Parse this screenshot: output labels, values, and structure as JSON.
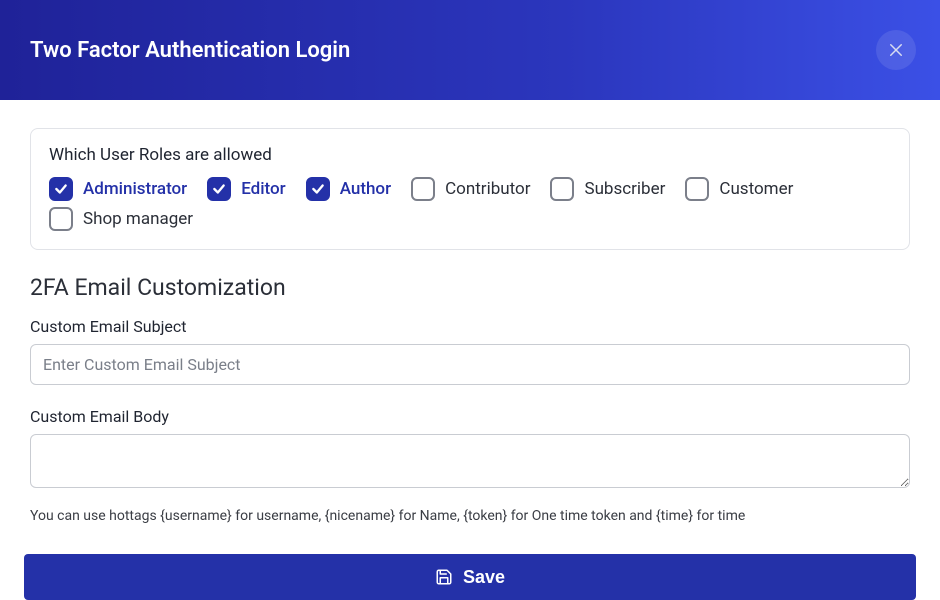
{
  "colors": {
    "header_gradient_from": "#1f2298",
    "header_gradient_to": "#3b50e6",
    "primary": "#2431a8",
    "border": "#e1e3e8",
    "input_border": "#c9ccd2",
    "text": "#2b2f38",
    "hint_text": "#3a3d44",
    "placeholder": "#7a7f89",
    "unchecked_border": "#7b7f8a",
    "white": "#ffffff"
  },
  "header": {
    "title": "Two Factor Authentication Login"
  },
  "roles_panel": {
    "title": "Which User Roles are allowed",
    "roles": [
      {
        "label": "Administrator",
        "checked": true
      },
      {
        "label": "Editor",
        "checked": true
      },
      {
        "label": "Author",
        "checked": true
      },
      {
        "label": "Contributor",
        "checked": false
      },
      {
        "label": "Subscriber",
        "checked": false
      },
      {
        "label": "Customer",
        "checked": false
      },
      {
        "label": "Shop manager",
        "checked": false
      }
    ]
  },
  "customization": {
    "heading": "2FA Email Customization",
    "subject_label": "Custom Email Subject",
    "subject_placeholder": "Enter Custom Email Subject",
    "subject_value": "",
    "body_label": "Custom Email Body",
    "body_value": "",
    "hint": "You can use hottags {username} for username, {nicename} for Name, {token} for One time token and {time} for time"
  },
  "footer": {
    "save_label": "Save"
  }
}
